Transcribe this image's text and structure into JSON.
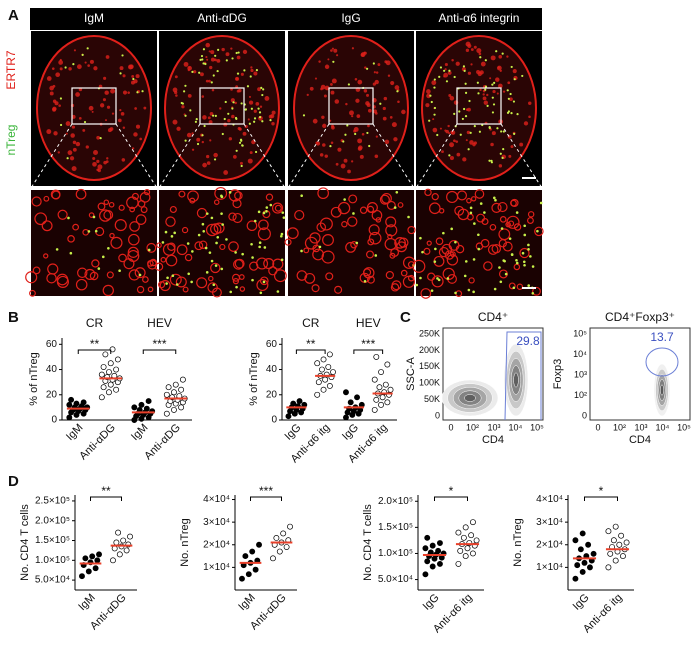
{
  "panel_labels": [
    "A",
    "B",
    "C",
    "D"
  ],
  "panel_a": {
    "columns": [
      "IgM",
      "Anti-αDG",
      "IgG",
      "Anti-α6 integrin"
    ],
    "stain_red": "ERTR7",
    "stain_green": "nTreg"
  },
  "panel_c": {
    "plots": [
      {
        "title": "CD4⁺",
        "ylabel": "SSC-A",
        "xlabel": "CD4",
        "yticks": [
          "0",
          "50K",
          "100K",
          "150K",
          "200K",
          "250K"
        ],
        "xticks": [
          "0",
          "10²",
          "10³",
          "10⁴",
          "10⁵"
        ],
        "gate": "29.8"
      },
      {
        "title": "CD4⁺Foxp3⁺",
        "ylabel": "Foxp3",
        "xlabel": "CD4",
        "yticks": [
          "0",
          "10²",
          "10³",
          "10⁴",
          "10⁵"
        ],
        "xticks": [
          "0",
          "10²",
          "10³",
          "10⁴",
          "10⁵"
        ],
        "gate": "13.7"
      }
    ]
  },
  "chart_data": [
    {
      "type": "dot",
      "ylabel": "% of nTreg",
      "categories": [
        "IgM",
        "Anti-αDG",
        "IgM",
        "Anti-αDG"
      ],
      "groups": [
        "CR",
        "HEV"
      ],
      "significance": [
        "**",
        "***"
      ],
      "points": [
        [
          2,
          4,
          5,
          6,
          7,
          8,
          8,
          9,
          10,
          10,
          11,
          12,
          13,
          14,
          16
        ],
        [
          18,
          22,
          24,
          26,
          28,
          30,
          31,
          32,
          33,
          34,
          35,
          36,
          38,
          40,
          42,
          45,
          48,
          52,
          56
        ],
        [
          0,
          1,
          2,
          3,
          4,
          5,
          5,
          6,
          7,
          8,
          9,
          10,
          12,
          15
        ],
        [
          5,
          8,
          10,
          12,
          13,
          14,
          15,
          16,
          17,
          18,
          19,
          20,
          22,
          24,
          26,
          28,
          32
        ]
      ],
      "means": [
        9,
        33,
        6,
        17
      ],
      "marker_fill": [
        "#000000",
        "#ffffff",
        "#000000",
        "#ffffff"
      ],
      "mean_color": "#e8402a",
      "ylim": [
        0,
        65
      ],
      "yticks": [
        0,
        20,
        40,
        60
      ]
    },
    {
      "type": "dot",
      "ylabel": "% of nTreg",
      "categories": [
        "IgG",
        "Anti-α6 itg",
        "IgG",
        "Anti-α6 itg"
      ],
      "groups": [
        "CR",
        "HEV"
      ],
      "significance": [
        "**",
        "***"
      ],
      "points": [
        [
          3,
          5,
          6,
          7,
          8,
          9,
          10,
          11,
          12,
          13,
          15
        ],
        [
          20,
          24,
          27,
          30,
          32,
          34,
          35,
          36,
          38,
          40,
          42,
          45,
          48,
          52
        ],
        [
          2,
          4,
          5,
          6,
          7,
          8,
          9,
          10,
          12,
          14,
          18,
          22
        ],
        [
          8,
          12,
          14,
          16,
          18,
          20,
          21,
          22,
          24,
          26,
          28,
          32,
          38,
          44,
          50
        ]
      ],
      "means": [
        10,
        35,
        10,
        21
      ],
      "marker_fill": [
        "#000000",
        "#ffffff",
        "#000000",
        "#ffffff"
      ],
      "mean_color": "#e8402a",
      "ylim": [
        0,
        65
      ],
      "yticks": [
        0,
        20,
        40,
        60
      ]
    },
    {
      "type": "dot",
      "ylabel": "No. CD4 T cells",
      "categories": [
        "IgM",
        "Anti-αDG"
      ],
      "significance": [
        "**"
      ],
      "points": [
        [
          60000,
          72000,
          80000,
          88000,
          95000,
          100000,
          105000,
          110000,
          115000
        ],
        [
          100000,
          115000,
          125000,
          130000,
          135000,
          140000,
          145000,
          150000,
          160000,
          170000
        ]
      ],
      "means": [
        92000,
        137000
      ],
      "marker_fill": [
        "#000000",
        "#ffffff"
      ],
      "mean_color": "#e8402a",
      "ylim": [
        25000,
        265000
      ],
      "yticks": [
        {
          "value": 50000,
          "label": "5.0×10⁴"
        },
        {
          "value": 100000,
          "label": "1.0×10⁵"
        },
        {
          "value": 150000,
          "label": "1.5×10⁵"
        },
        {
          "value": 200000,
          "label": "2.0×10⁵"
        },
        {
          "value": 250000,
          "label": "2.5×10⁵"
        }
      ]
    },
    {
      "type": "dot",
      "ylabel": "No. nTreg",
      "categories": [
        "IgM",
        "Anti-αDG"
      ],
      "significance": [
        "***"
      ],
      "points": [
        [
          5000,
          7000,
          9000,
          11000,
          12000,
          13000,
          15000,
          17000,
          20000
        ],
        [
          14000,
          17000,
          19000,
          20000,
          21000,
          22000,
          23000,
          25000,
          28000
        ]
      ],
      "means": [
        12000,
        21000
      ],
      "marker_fill": [
        "#000000",
        "#ffffff"
      ],
      "mean_color": "#e8402a",
      "ylim": [
        0,
        42000
      ],
      "yticks": [
        {
          "value": 10000,
          "label": "1×10⁴"
        },
        {
          "value": 20000,
          "label": "2×10⁴"
        },
        {
          "value": 30000,
          "label": "3×10⁴"
        },
        {
          "value": 40000,
          "label": "4×10⁴"
        }
      ]
    },
    {
      "type": "dot",
      "ylabel": "No. CD4 T cells",
      "categories": [
        "IgG",
        "Anti-α6 itg"
      ],
      "significance": [
        "*"
      ],
      "points": [
        [
          60000,
          75000,
          80000,
          85000,
          90000,
          92000,
          95000,
          98000,
          100000,
          102000,
          105000,
          110000,
          115000,
          120000,
          130000
        ],
        [
          80000,
          95000,
          100000,
          105000,
          110000,
          115000,
          118000,
          120000,
          125000,
          130000,
          135000,
          140000,
          150000,
          160000
        ]
      ],
      "means": [
        97000,
        118000
      ],
      "marker_fill": [
        "#000000",
        "#ffffff"
      ],
      "mean_color": "#e8402a",
      "ylim": [
        30000,
        212000
      ],
      "yticks": [
        {
          "value": 50000,
          "label": "5.0×10⁴"
        },
        {
          "value": 100000,
          "label": "1.0×10⁵"
        },
        {
          "value": 150000,
          "label": "1.5×10⁵"
        },
        {
          "value": 200000,
          "label": "2.0×10⁵"
        }
      ]
    },
    {
      "type": "dot",
      "ylabel": "No. nTreg",
      "categories": [
        "IgG",
        "Anti-α6 itg"
      ],
      "significance": [
        "*"
      ],
      "points": [
        [
          5000,
          8000,
          10000,
          11000,
          12000,
          13000,
          14000,
          15000,
          16000,
          18000,
          20000,
          22000,
          25000
        ],
        [
          10000,
          13000,
          15000,
          16000,
          17000,
          18000,
          19000,
          20000,
          21000,
          22000,
          24000,
          26000,
          28000
        ]
      ],
      "means": [
        14000,
        18000
      ],
      "marker_fill": [
        "#000000",
        "#ffffff"
      ],
      "mean_color": "#e8402a",
      "ylim": [
        0,
        42000
      ],
      "yticks": [
        {
          "value": 10000,
          "label": "1×10⁴"
        },
        {
          "value": 20000,
          "label": "2×10⁴"
        },
        {
          "value": 30000,
          "label": "3×10⁴"
        },
        {
          "value": 40000,
          "label": "4×10⁴"
        }
      ]
    }
  ]
}
